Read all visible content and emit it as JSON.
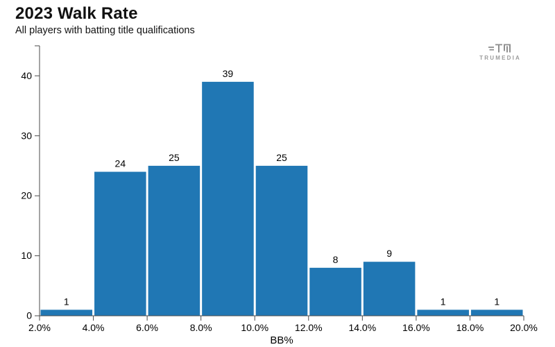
{
  "header": {
    "title": "2023 Walk Rate",
    "subtitle": "All players with batting title qualifications"
  },
  "logo": {
    "name": "TRUMEDIA",
    "color": "#9b9b9b"
  },
  "chart_data": {
    "type": "bar",
    "subtype": "histogram",
    "title": "2023 Walk Rate",
    "subtitle": "All players with batting title qualifications",
    "xlabel": "BB%",
    "ylabel": "",
    "bin_edges_percent": [
      2,
      4,
      6,
      8,
      10,
      12,
      14,
      16,
      18,
      20
    ],
    "values": [
      1,
      24,
      25,
      39,
      25,
      8,
      9,
      1,
      1
    ],
    "x_tick_labels": [
      "2.0%",
      "4.0%",
      "6.0%",
      "8.0%",
      "10.0%",
      "12.0%",
      "14.0%",
      "16.0%",
      "18.0%",
      "20.0%"
    ],
    "y_ticks": [
      0,
      10,
      20,
      30,
      40
    ],
    "ylim": [
      0,
      45
    ],
    "grid": false,
    "legend_position": "none",
    "bar_color": "#2077b4",
    "axis_color": "#4a4a4a",
    "text_color": "#000000",
    "background_color": "#ffffff"
  }
}
